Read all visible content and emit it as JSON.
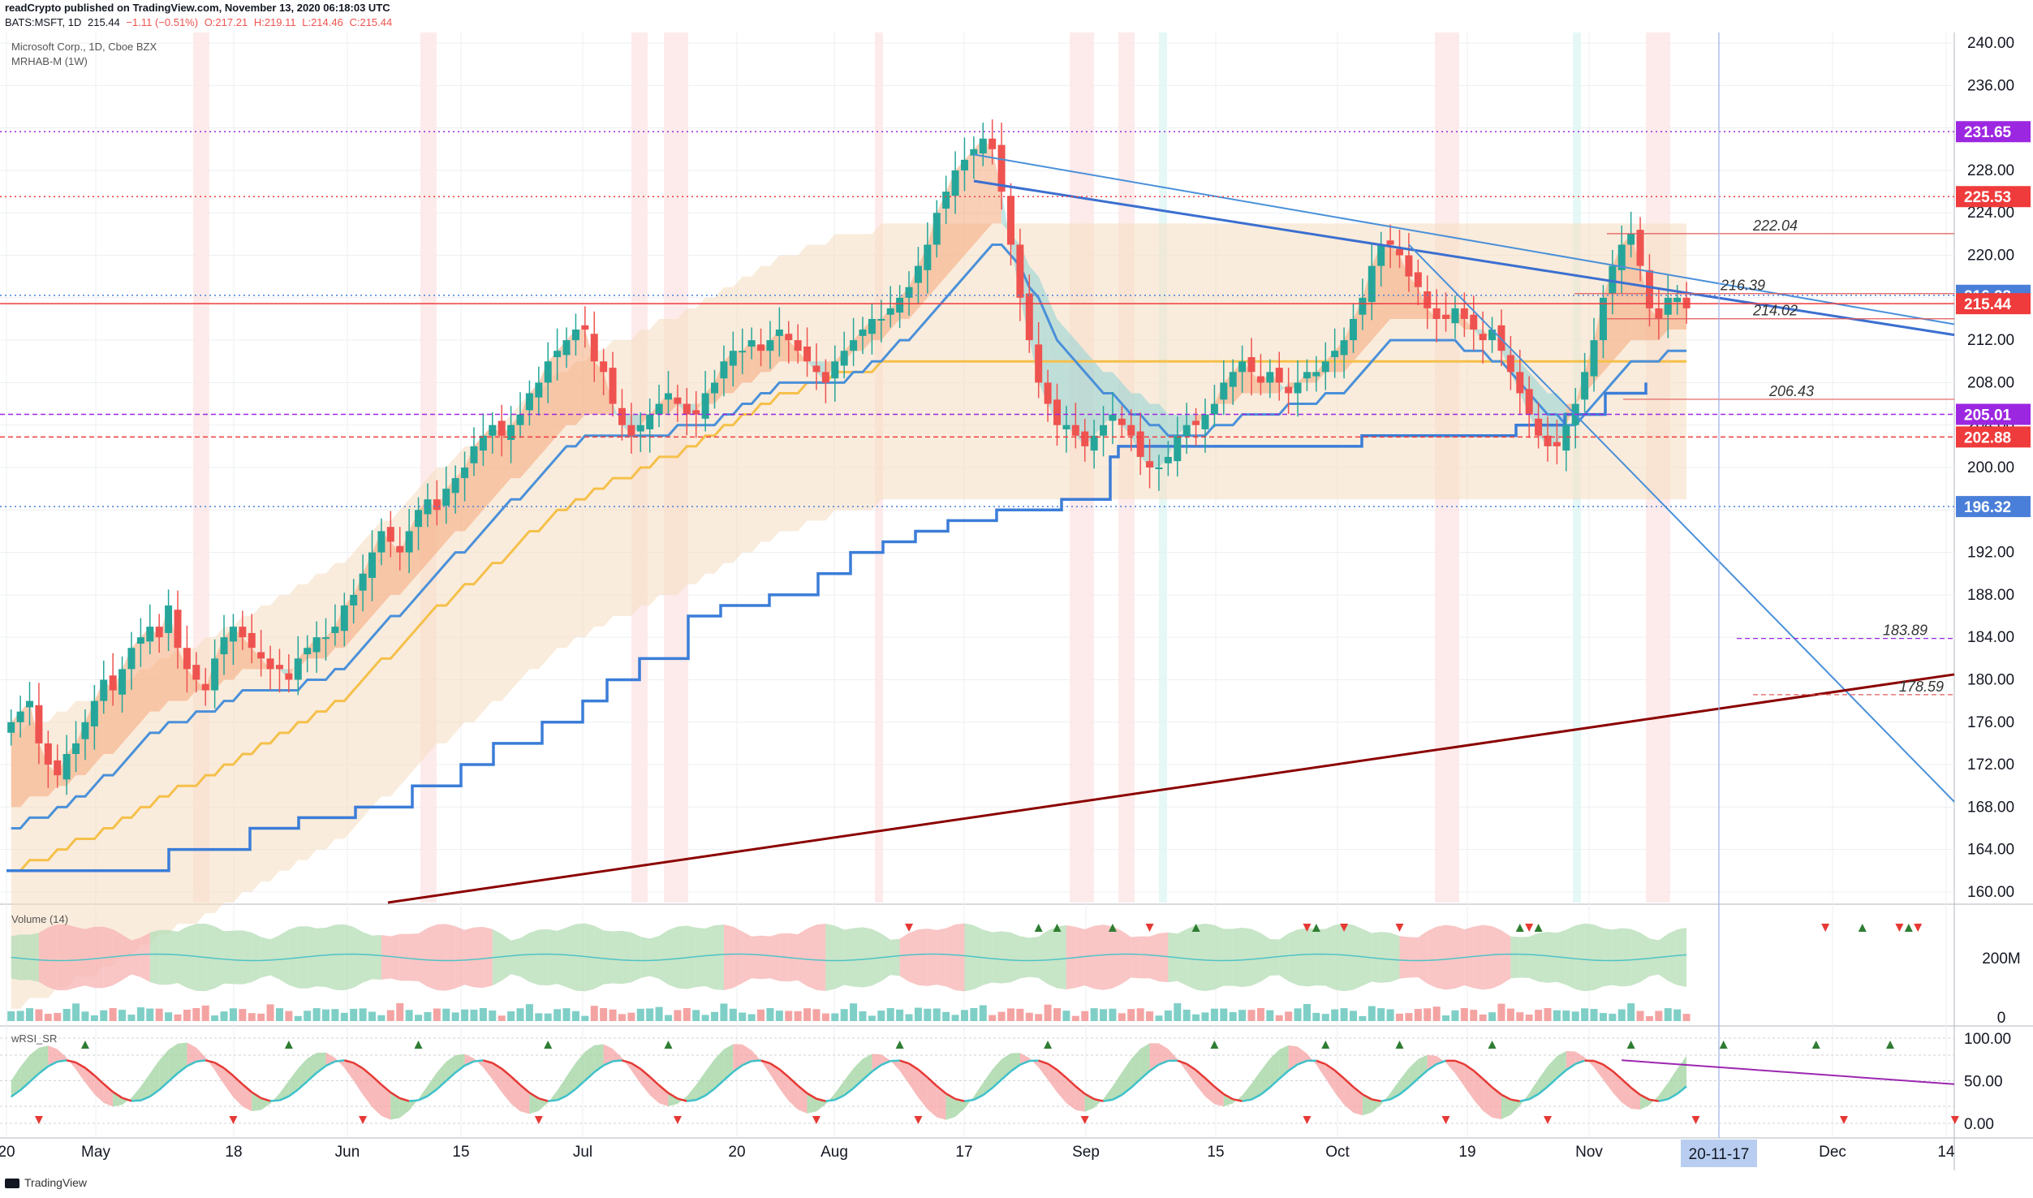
{
  "header": {
    "publisher_line": "readCrypto published on TradingView.com, November 13, 2020 06:18:03 UTC",
    "symbol": "BATS:MSFT, 1D",
    "last": "215.44",
    "change": "−1.11 (−0.51%)",
    "open": "O:217.21",
    "high": "H:219.11",
    "low": "L:214.46",
    "close": "C:215.44"
  },
  "pane_labels": {
    "main_title": "Microsoft Corp., 1D, Cboe BZX",
    "main_indicator": "MRHAB-M (1W)",
    "volume": "Volume (14)",
    "rsi": "wRSI_SR"
  },
  "footer": {
    "brand": "TradingView"
  },
  "colors": {
    "up": "#26a69a",
    "down": "#ef5350",
    "blue_line": "#4a90d9",
    "purple": "#8e24aa",
    "maroon": "#8b0000",
    "orange_line": "#f5c04a",
    "band": "#f5dcc0",
    "price_red": "#ef3b3b",
    "price_blue": "#4a7fd9",
    "price_purple": "#9c27e0"
  },
  "chart_data": [
    {
      "type": "candlestick",
      "title": "Microsoft Corp., 1D, Cboe BZX",
      "ylim": [
        159,
        241
      ],
      "y_ticks": [
        160,
        164,
        168,
        172,
        176,
        180,
        184,
        188,
        192,
        196,
        200,
        204,
        208,
        212,
        216,
        220,
        224,
        228,
        232,
        236,
        240
      ],
      "y_tick_labels": [
        "160.00",
        "164.00",
        "168.00",
        "172.00",
        "176.00",
        "180.00",
        "184.00",
        "188.00",
        "192.00",
        "196.00",
        "200.00",
        "204.00",
        "208.00",
        "212.00",
        "216.00",
        "220.00",
        "224.00",
        "228.00",
        "232.00",
        "236.00",
        "240.00"
      ],
      "x_labels": [
        "20",
        "May",
        "18",
        "Jun",
        "15",
        "Jul",
        "20",
        "Aug",
        "17",
        "Sep",
        "15",
        "Oct",
        "19",
        "Nov",
        "Dec",
        "14"
      ],
      "x_label_days": [
        0,
        11,
        28,
        42,
        56,
        71,
        90,
        102,
        118,
        133,
        149,
        164,
        180,
        195,
        225,
        239
      ],
      "x_range_days": [
        0,
        240
      ],
      "crosshair_date": "20-11-17",
      "crosshair_day": 211,
      "closes": [
        176,
        177,
        178,
        174,
        172,
        171,
        173,
        174,
        176,
        178,
        180,
        179,
        181,
        183,
        184,
        185,
        184,
        187,
        183,
        181,
        180,
        179,
        182,
        184,
        185,
        184,
        183,
        182,
        181,
        181,
        180,
        182,
        183,
        184,
        184,
        185,
        187,
        188,
        190,
        192,
        194,
        193,
        192,
        194,
        196,
        197,
        196,
        198,
        199,
        200,
        202,
        203,
        204,
        203,
        204,
        205,
        207,
        208,
        210,
        211,
        212,
        213,
        213,
        210,
        209,
        206,
        204,
        203,
        204,
        205,
        206,
        207,
        206,
        205,
        205,
        207,
        208,
        210,
        211,
        211,
        212,
        211,
        212,
        213,
        212,
        211,
        210,
        209,
        208,
        210,
        211,
        212,
        213,
        214,
        214,
        215,
        216,
        217,
        219,
        221,
        224,
        226,
        228,
        229,
        230,
        231,
        230,
        226,
        221,
        216,
        212,
        208,
        206,
        204,
        204,
        203,
        202,
        203,
        204,
        205,
        204,
        203,
        201,
        200,
        200,
        201,
        203,
        204,
        204,
        205,
        206,
        208,
        209,
        210,
        209,
        208,
        209,
        208,
        207,
        208,
        209,
        209,
        210,
        211,
        212,
        214,
        216,
        219,
        221,
        221,
        220,
        218,
        217,
        215,
        214,
        214,
        215,
        214,
        213,
        212,
        213,
        211,
        209,
        207,
        205,
        203,
        202,
        202,
        204,
        206,
        209,
        212,
        216,
        219,
        221,
        222,
        219,
        215,
        214,
        216,
        216,
        215
      ],
      "ema_fast": [
        168,
        168,
        169,
        169,
        169,
        170,
        170,
        171,
        171,
        172,
        173,
        173,
        174,
        175,
        176,
        177,
        177,
        178,
        178,
        178,
        179,
        179,
        179,
        180,
        180,
        181,
        181,
        181,
        181,
        181,
        181,
        181,
        182,
        182,
        182,
        183,
        183,
        184,
        185,
        186,
        187,
        188,
        188,
        189,
        190,
        191,
        192,
        193,
        194,
        194,
        195,
        196,
        197,
        198,
        199,
        199,
        200,
        201,
        202,
        203,
        204,
        204,
        205,
        205,
        205,
        205,
        205,
        205,
        205,
        205,
        205,
        205,
        206,
        206,
        206,
        206,
        206,
        207,
        207,
        208,
        208,
        209,
        209,
        210,
        210,
        210,
        210,
        210,
        210,
        210,
        210,
        211,
        211,
        212,
        212,
        213,
        214,
        214,
        215,
        216,
        217,
        218,
        219,
        220,
        221,
        222,
        223,
        223,
        222,
        221,
        219,
        218,
        216,
        214,
        213,
        212,
        211,
        210,
        209,
        209,
        208,
        207,
        207,
        206,
        206,
        205,
        205,
        205,
        205,
        205,
        206,
        206,
        206,
        207,
        207,
        207,
        207,
        207,
        208,
        208,
        208,
        208,
        209,
        209,
        209,
        210,
        211,
        212,
        213,
        214,
        214,
        214,
        214,
        214,
        214,
        214,
        214,
        213,
        213,
        213,
        212,
        212,
        211,
        210,
        209,
        208,
        207,
        207,
        206,
        206,
        207,
        208,
        209,
        210,
        211,
        212,
        212,
        212,
        212,
        213,
        213,
        213
      ],
      "sma_slow": [
        162,
        162,
        163,
        163,
        163,
        164,
        164,
        165,
        165,
        165,
        166,
        166,
        167,
        167,
        168,
        168,
        169,
        169,
        170,
        170,
        170,
        171,
        171,
        172,
        172,
        173,
        173,
        174,
        174,
        175,
        175,
        176,
        176,
        177,
        177,
        178,
        178,
        179,
        180,
        181,
        182,
        182,
        183,
        184,
        185,
        186,
        187,
        187,
        188,
        189,
        189,
        190,
        191,
        191,
        192,
        193,
        194,
        194,
        195,
        196,
        196,
        197,
        197,
        198,
        198,
        199,
        199,
        199,
        200,
        200,
        201,
        201,
        201,
        202,
        202,
        203,
        203,
        204,
        204,
        205,
        205,
        206,
        206,
        207,
        207,
        207,
        208,
        208,
        208,
        209,
        209,
        209,
        209,
        209,
        210,
        210,
        210,
        210,
        210,
        210,
        210,
        210,
        210,
        210,
        210,
        210,
        210,
        210,
        210,
        210,
        210,
        210,
        210,
        210,
        210,
        210,
        210,
        210,
        210,
        210,
        210,
        210,
        210,
        210,
        210,
        210,
        210,
        210,
        210,
        210,
        210,
        210,
        210,
        210,
        210,
        210,
        210,
        210,
        210,
        210,
        210,
        210,
        210,
        210,
        210,
        210,
        210,
        210,
        210,
        210,
        210,
        210,
        210,
        210,
        210,
        210,
        210,
        210,
        210,
        210,
        210,
        210,
        210,
        210,
        210,
        210,
        210,
        210,
        210,
        210,
        210,
        210,
        210,
        210,
        210,
        210,
        210,
        210,
        210,
        210,
        210,
        210
      ],
      "stop_steps": [
        [
          0,
          162
        ],
        [
          20,
          164
        ],
        [
          30,
          166
        ],
        [
          36,
          167
        ],
        [
          43,
          168
        ],
        [
          50,
          170
        ],
        [
          56,
          172
        ],
        [
          60,
          174
        ],
        [
          66,
          176
        ],
        [
          71,
          178
        ],
        [
          74,
          180
        ],
        [
          78,
          182
        ],
        [
          84,
          186
        ],
        [
          88,
          187
        ],
        [
          94,
          188
        ],
        [
          100,
          190
        ],
        [
          104,
          192
        ],
        [
          108,
          193
        ],
        [
          112,
          194
        ],
        [
          116,
          195
        ],
        [
          122,
          196
        ],
        [
          130,
          197
        ],
        [
          136,
          201
        ],
        [
          137,
          202
        ],
        [
          144,
          202
        ],
        [
          148,
          202
        ],
        [
          160,
          202
        ],
        [
          167,
          203
        ],
        [
          172,
          203
        ],
        [
          178,
          203
        ],
        [
          186,
          204
        ],
        [
          192,
          205
        ],
        [
          197,
          207
        ],
        [
          202,
          208
        ]
      ],
      "horizontal_levels": [
        {
          "value": 231.65,
          "label": "231.65",
          "style": "purple-dotted"
        },
        {
          "value": 225.53,
          "label": "225.53",
          "style": "red-dotted"
        },
        {
          "value": 216.23,
          "label": "216.23",
          "style": "blue-dotted"
        },
        {
          "value": 215.44,
          "label": "215.44",
          "style": "red-solid"
        },
        {
          "value": 205.01,
          "label": "205.01",
          "style": "purple-dashed"
        },
        {
          "value": 202.88,
          "label": "202.88",
          "style": "red-dashed"
        },
        {
          "value": 196.32,
          "label": "196.32",
          "style": "blue-dotted"
        }
      ],
      "level_annotations": [
        {
          "value": 222.04,
          "label": "222.04"
        },
        {
          "value": 216.39,
          "label": "216.39"
        },
        {
          "value": 214.02,
          "label": "214.02"
        },
        {
          "value": 206.43,
          "label": "206.43"
        },
        {
          "value": 183.89,
          "label": "183.89"
        },
        {
          "value": 178.59,
          "label": "178.59"
        }
      ]
    },
    {
      "type": "area",
      "title": "Volume (14)",
      "y_tick_labels": [
        "200M",
        "0"
      ]
    },
    {
      "type": "line",
      "title": "wRSI_SR",
      "ylim": [
        0,
        100
      ],
      "y_ticks": [
        0,
        50,
        100
      ],
      "y_tick_labels": [
        "0.00",
        "50.00",
        "100.00"
      ]
    }
  ]
}
